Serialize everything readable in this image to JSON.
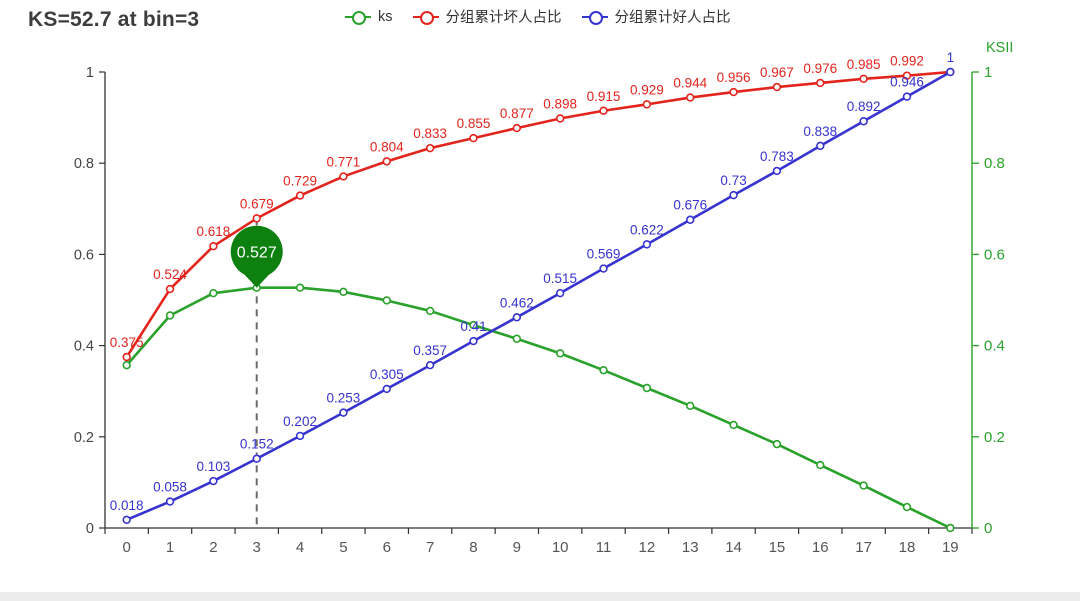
{
  "page": {
    "title": "KS=52.7 at bin=3"
  },
  "legend": {
    "items": [
      {
        "id": "ks",
        "label": "ks",
        "color": "#2aa12b"
      },
      {
        "id": "bad",
        "label": "分组累计坏人占比",
        "color": "#e2241d"
      },
      {
        "id": "good",
        "label": "分组累计好人占比",
        "color": "#3633cf"
      }
    ]
  },
  "chart_data": {
    "type": "line",
    "x": [
      "0",
      "1",
      "2",
      "3",
      "4",
      "5",
      "6",
      "7",
      "8",
      "9",
      "10",
      "11",
      "12",
      "13",
      "14",
      "15",
      "16",
      "17",
      "18",
      "19"
    ],
    "series": [
      {
        "name": "ks",
        "color": "#2aa12b",
        "y_axis": "right",
        "values": [
          0.357,
          0.466,
          0.515,
          0.527,
          0.527,
          0.518,
          0.499,
          0.476,
          0.445,
          0.415,
          0.383,
          0.346,
          0.307,
          0.268,
          0.226,
          0.184,
          0.138,
          0.093,
          0.046,
          0
        ],
        "labels": [
          "",
          "",
          "",
          "",
          "",
          "",
          "",
          "",
          "",
          "",
          "",
          "",
          "",
          "",
          "",
          "",
          "",
          "",
          "",
          ""
        ]
      },
      {
        "name": "分组累计坏人占比",
        "color": "#e2241d",
        "y_axis": "left",
        "values": [
          0.375,
          0.524,
          0.618,
          0.679,
          0.729,
          0.771,
          0.804,
          0.833,
          0.855,
          0.877,
          0.898,
          0.915,
          0.929,
          0.944,
          0.956,
          0.967,
          0.976,
          0.985,
          0.992,
          1
        ],
        "labels": [
          "0.375",
          "0.524",
          "0.618",
          "0.679",
          "0.729",
          "0.771",
          "0.804",
          "0.833",
          "0.855",
          "0.877",
          "0.898",
          "0.915",
          "0.929",
          "0.944",
          "0.956",
          "0.967",
          "0.976",
          "0.985",
          "0.992",
          ""
        ]
      },
      {
        "name": "分组累计好人占比",
        "color": "#3633cf",
        "y_axis": "left",
        "values": [
          0.018,
          0.058,
          0.103,
          0.152,
          0.202,
          0.253,
          0.305,
          0.357,
          0.41,
          0.462,
          0.515,
          0.569,
          0.622,
          0.676,
          0.73,
          0.783,
          0.838,
          0.892,
          0.946,
          1
        ],
        "labels": [
          "0.018",
          "0.058",
          "0.103",
          "0.152",
          "0.202",
          "0.253",
          "0.305",
          "0.357",
          "0.41",
          "0.462",
          "0.515",
          "0.569",
          "0.622",
          "0.676",
          "0.73",
          "0.783",
          "0.838",
          "0.892",
          "0.946",
          "1"
        ]
      }
    ],
    "left_axis": {
      "ticks": [
        "0",
        "0.2",
        "0.4",
        "0.6",
        "0.8",
        "1"
      ],
      "range": [
        0,
        1
      ],
      "color": "#333333",
      "label_color": "#444444"
    },
    "right_axis": {
      "title": "KSII",
      "ticks": [
        "0",
        "0.2",
        "0.4",
        "0.6",
        "0.8",
        "1"
      ],
      "range": [
        0,
        1
      ],
      "color": "#2aa12b"
    },
    "x_axis": {
      "labels": [
        "0",
        "1",
        "2",
        "3",
        "4",
        "5",
        "6",
        "7",
        "8",
        "9",
        "10",
        "11",
        "12",
        "13",
        "14",
        "15",
        "16",
        "17",
        "18",
        "19"
      ],
      "color": "#333333",
      "label_color": "#555555"
    },
    "annotations": {
      "pin": {
        "bin": 3,
        "label": "0.527",
        "color": "#0e8010",
        "text_color": "#ffffff"
      },
      "dashed_line": {
        "bin": 3,
        "from_value": 0.679,
        "to_value": 0,
        "color": "#6b6b6b"
      }
    },
    "title": "KS=52.7 at bin=3",
    "grid": false,
    "legend_position": "top"
  }
}
